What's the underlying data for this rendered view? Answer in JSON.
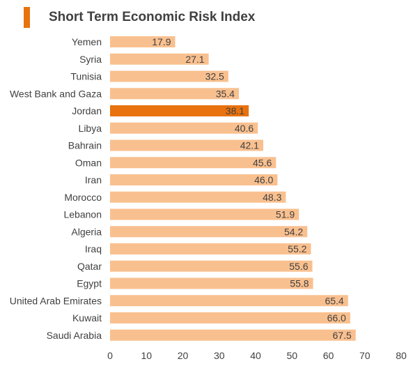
{
  "colors": {
    "bar": "#F9C08F",
    "highlight": "#E8720F",
    "title": "#404040",
    "text": "#404040",
    "marker": "#E8720F"
  },
  "chart_data": {
    "type": "bar",
    "orientation": "horizontal",
    "title": "Short Term Economic Risk Index",
    "categories": [
      "Yemen",
      "Syria",
      "Tunisia",
      "West Bank and Gaza",
      "Jordan",
      "Libya",
      "Bahrain",
      "Oman",
      "Iran",
      "Morocco",
      "Lebanon",
      "Algeria",
      "Iraq",
      "Qatar",
      "Egypt",
      "United Arab Emirates",
      "Kuwait",
      "Saudi Arabia"
    ],
    "values": [
      17.9,
      27.1,
      32.5,
      35.4,
      38.1,
      40.6,
      42.1,
      45.6,
      46.0,
      48.3,
      51.9,
      54.2,
      55.2,
      55.6,
      55.8,
      65.4,
      66.0,
      67.5
    ],
    "value_labels": [
      "17.9",
      "27.1",
      "32.5",
      "35.4",
      "38.1",
      "40.6",
      "42.1",
      "45.6",
      "46.0",
      "48.3",
      "51.9",
      "54.2",
      "55.2",
      "55.6",
      "55.8",
      "65.4",
      "66.0",
      "67.5"
    ],
    "highlighted_category": "Jordan",
    "xlim": [
      0,
      80
    ],
    "xticks": [
      "0",
      "10",
      "20",
      "30",
      "40",
      "50",
      "60",
      "70",
      "80"
    ],
    "xlabel": "",
    "ylabel": "",
    "grid": false,
    "legend": "none"
  }
}
